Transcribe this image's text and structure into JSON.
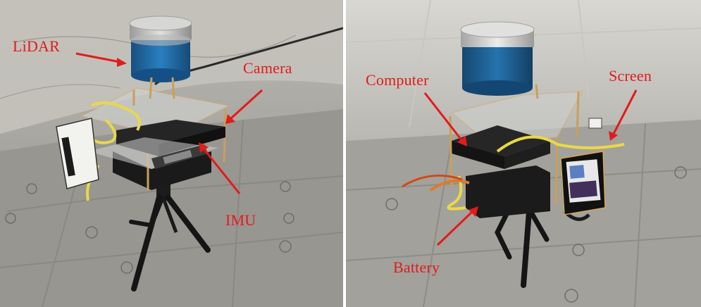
{
  "labels": {
    "lidar": "LiDAR",
    "camera": "Camera",
    "imu": "IMU",
    "computer": "Computer",
    "screen": "Screen",
    "battery": "Battery"
  },
  "colors": {
    "annotation": "#e21b1b",
    "lidar_body": "#1f6aa8",
    "cable": "#e9d84a"
  }
}
